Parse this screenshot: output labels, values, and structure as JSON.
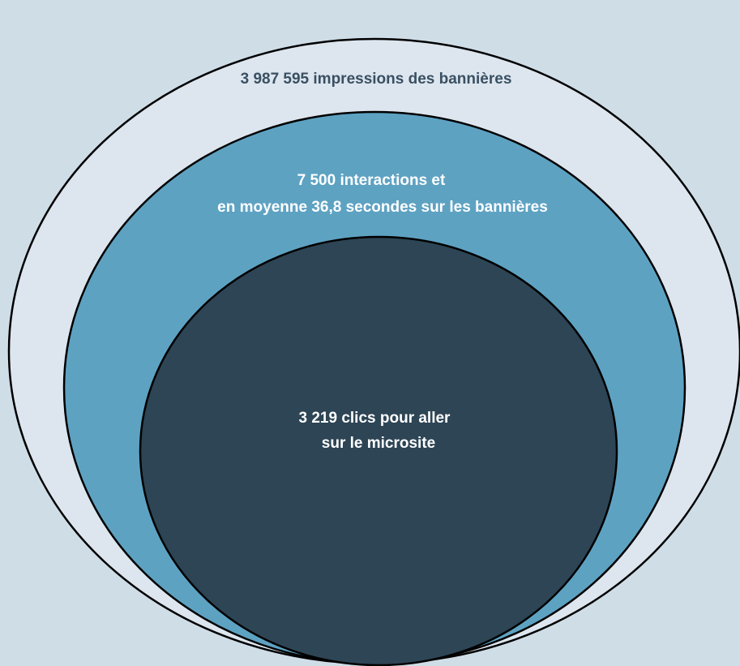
{
  "diagram": {
    "background_color": "#cfdde7",
    "outline_color": "#000000",
    "levels": [
      {
        "lines": [
          "3 987 595 impressions des bannières"
        ],
        "fill": "#dde6ef",
        "text_color": "#3a5062"
      },
      {
        "lines": [
          "7 500 interactions et",
          "en moyenne 36,8 secondes sur les bannières"
        ],
        "fill": "#5ea2c2",
        "text_color": "#ffffff"
      },
      {
        "lines": [
          "3 219 clics pour aller",
          "sur le microsite"
        ],
        "fill": "#2d4555",
        "text_color": "#ffffff"
      }
    ]
  }
}
